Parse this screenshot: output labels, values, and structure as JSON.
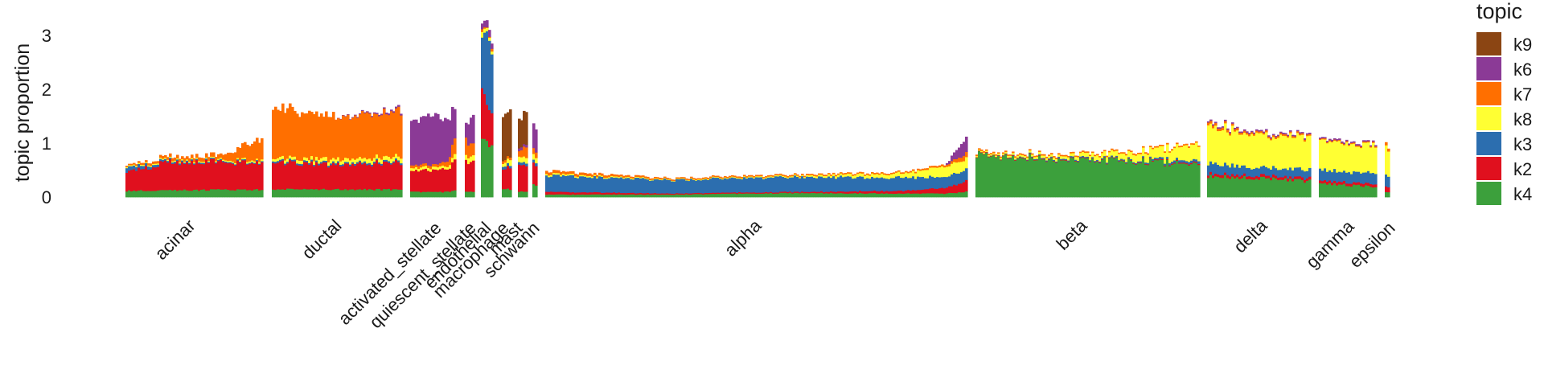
{
  "chart_data": {
    "type": "bar",
    "subtype": "stacked structure plot (per-cell stacked bars grouped by cell type)",
    "ylabel": "topic proportion",
    "xlabel": "",
    "yticks": [
      0,
      1,
      2,
      3
    ],
    "ylim": [
      0,
      3.3
    ],
    "grid": false,
    "legend": {
      "title": "topic",
      "position": "right"
    },
    "series": [
      {
        "name": "k9",
        "color": "#8B4513"
      },
      {
        "name": "k6",
        "color": "#8B3A96"
      },
      {
        "name": "k7",
        "color": "#FF6F00"
      },
      {
        "name": "k8",
        "color": "#FFFF33"
      },
      {
        "name": "k3",
        "color": "#2C6EAF"
      },
      {
        "name": "k2",
        "color": "#E0101E"
      },
      {
        "name": "k4",
        "color": "#3CA03C"
      }
    ],
    "stack_order": [
      "k4",
      "k2",
      "k3",
      "k8",
      "k7",
      "k6",
      "k9"
    ],
    "groups": [
      {
        "name": "acinar",
        "profile": [
          {
            "t": 0,
            "k4": 0.12,
            "k2": 0.35,
            "k3": 0.08,
            "k8": 0.02,
            "k7": 0.02,
            "k6": 0.0,
            "k9": 0.0
          },
          {
            "t": 0.3,
            "k4": 0.13,
            "k2": 0.52,
            "k3": 0.03,
            "k8": 0.02,
            "k7": 0.05,
            "k6": 0.0,
            "k9": 0.0
          },
          {
            "t": 0.7,
            "k4": 0.14,
            "k2": 0.52,
            "k3": 0.02,
            "k8": 0.02,
            "k7": 0.08,
            "k6": 0.0,
            "k9": 0.0
          },
          {
            "t": 1,
            "k4": 0.14,
            "k2": 0.52,
            "k3": 0.02,
            "k8": 0.03,
            "k7": 0.4,
            "k6": 0.0,
            "k9": 0.0
          }
        ]
      },
      {
        "name": "ductal",
        "profile": [
          {
            "t": 0,
            "k4": 0.15,
            "k2": 0.5,
            "k3": 0.03,
            "k8": 0.05,
            "k7": 0.92,
            "k6": 0.0,
            "k9": 0.0
          },
          {
            "t": 0.5,
            "k4": 0.15,
            "k2": 0.45,
            "k3": 0.03,
            "k8": 0.07,
            "k7": 0.8,
            "k6": 0.0,
            "k9": 0.0
          },
          {
            "t": 1,
            "k4": 0.14,
            "k2": 0.5,
            "k3": 0.03,
            "k8": 0.08,
            "k7": 0.85,
            "k6": 0.03,
            "k9": 0.0
          }
        ]
      },
      {
        "name": "activated_stellate",
        "profile": [
          {
            "t": 0,
            "k4": 0.1,
            "k2": 0.42,
            "k3": 0.0,
            "k8": 0.05,
            "k7": 0.05,
            "k6": 0.9,
            "k9": 0.0
          },
          {
            "t": 0.6,
            "k4": 0.1,
            "k2": 0.38,
            "k3": 0.0,
            "k8": 0.05,
            "k7": 0.05,
            "k6": 0.85,
            "k9": 0.0
          },
          {
            "t": 0.85,
            "k4": 0.1,
            "k2": 0.45,
            "k3": 0.0,
            "k8": 0.05,
            "k7": 0.1,
            "k6": 0.7,
            "k9": 0.0
          },
          {
            "t": 1,
            "k4": 0.12,
            "k2": 0.55,
            "k3": 0.0,
            "k8": 0.1,
            "k7": 0.3,
            "k6": 0.6,
            "k9": 0.0
          }
        ]
      },
      {
        "name": "quiescent_stellate",
        "profile": [
          {
            "t": 0,
            "k4": 0.1,
            "k2": 0.55,
            "k3": 0.0,
            "k8": 0.1,
            "k7": 0.3,
            "k6": 0.3,
            "k9": 0.0
          },
          {
            "t": 1,
            "k4": 0.1,
            "k2": 0.6,
            "k3": 0.0,
            "k8": 0.1,
            "k7": 0.2,
            "k6": 0.5,
            "k9": 0.0
          }
        ]
      },
      {
        "name": "endothelial",
        "profile": [
          {
            "t": 0,
            "k4": 1.0,
            "k2": 0.9,
            "k3": 1.0,
            "k8": 0.1,
            "k7": 0.05,
            "k6": 0.1,
            "k9": 0.0
          },
          {
            "t": 0.6,
            "k4": 1.05,
            "k2": 0.7,
            "k3": 1.35,
            "k8": 0.05,
            "k7": 0.0,
            "k6": 0.15,
            "k9": 0.0
          },
          {
            "t": 1,
            "k4": 1.0,
            "k2": 0.6,
            "k3": 1.2,
            "k8": 0.05,
            "k7": 0.05,
            "k6": 0.1,
            "k9": 0.0
          }
        ]
      },
      {
        "name": "macrophage",
        "profile": [
          {
            "t": 0,
            "k4": 0.15,
            "k2": 0.4,
            "k3": 0.05,
            "k8": 0.05,
            "k7": 0.05,
            "k6": 0.0,
            "k9": 0.9
          },
          {
            "t": 1,
            "k4": 0.15,
            "k2": 0.4,
            "k3": 0.05,
            "k8": 0.1,
            "k7": 0.05,
            "k6": 0.0,
            "k9": 0.85
          }
        ]
      },
      {
        "name": "mast",
        "profile": [
          {
            "t": 0,
            "k4": 0.1,
            "k2": 0.5,
            "k3": 0.05,
            "k8": 0.1,
            "k7": 0.1,
            "k6": 0.05,
            "k9": 0.5
          },
          {
            "t": 1,
            "k4": 0.1,
            "k2": 0.5,
            "k3": 0.05,
            "k8": 0.1,
            "k7": 0.2,
            "k6": 0.05,
            "k9": 0.6
          }
        ]
      },
      {
        "name": "schwann",
        "profile": [
          {
            "t": 0,
            "k4": 0.25,
            "k2": 0.4,
            "k3": 0.05,
            "k8": 0.1,
            "k7": 0.1,
            "k6": 0.45,
            "k9": 0.0
          },
          {
            "t": 1,
            "k4": 0.2,
            "k2": 0.4,
            "k3": 0.05,
            "k8": 0.1,
            "k7": 0.1,
            "k6": 0.45,
            "k9": 0.0
          }
        ]
      },
      {
        "name": "alpha",
        "profile": [
          {
            "t": 0,
            "k4": 0.05,
            "k2": 0.05,
            "k3": 0.3,
            "k8": 0.03,
            "k7": 0.05,
            "k6": 0.0,
            "k9": 0.0
          },
          {
            "t": 0.3,
            "k4": 0.05,
            "k2": 0.02,
            "k3": 0.25,
            "k8": 0.01,
            "k7": 0.02,
            "k6": 0.0,
            "k9": 0.0
          },
          {
            "t": 0.6,
            "k4": 0.08,
            "k2": 0.02,
            "k3": 0.28,
            "k8": 0.02,
            "k7": 0.02,
            "k6": 0.0,
            "k9": 0.0
          },
          {
            "t": 0.85,
            "k4": 0.07,
            "k2": 0.05,
            "k3": 0.25,
            "k8": 0.08,
            "k7": 0.02,
            "k6": 0.0,
            "k9": 0.0
          },
          {
            "t": 0.95,
            "k4": 0.07,
            "k2": 0.1,
            "k3": 0.2,
            "k8": 0.2,
            "k7": 0.03,
            "k6": 0.0,
            "k9": 0.0
          },
          {
            "t": 1,
            "k4": 0.1,
            "k2": 0.2,
            "k3": 0.2,
            "k8": 0.2,
            "k7": 0.1,
            "k6": 0.3,
            "k9": 0.0
          }
        ]
      },
      {
        "name": "beta",
        "profile": [
          {
            "t": 0,
            "k4": 0.78,
            "k2": 0.01,
            "k3": 0.0,
            "k8": 0.02,
            "k7": 0.02,
            "k6": 0.0,
            "k9": 0.0
          },
          {
            "t": 0.4,
            "k4": 0.7,
            "k2": 0.01,
            "k3": 0.02,
            "k8": 0.05,
            "k7": 0.02,
            "k6": 0.0,
            "k9": 0.0
          },
          {
            "t": 0.7,
            "k4": 0.67,
            "k2": 0.01,
            "k3": 0.02,
            "k8": 0.12,
            "k7": 0.02,
            "k6": 0.0,
            "k9": 0.0
          },
          {
            "t": 1,
            "k4": 0.62,
            "k2": 0.02,
            "k3": 0.05,
            "k8": 0.3,
            "k7": 0.02,
            "k6": 0.0,
            "k9": 0.0
          }
        ]
      },
      {
        "name": "delta",
        "profile": [
          {
            "t": 0,
            "k4": 0.4,
            "k2": 0.05,
            "k3": 0.2,
            "k8": 0.7,
            "k7": 0.05,
            "k6": 0.02,
            "k9": 0.0
          },
          {
            "t": 0.5,
            "k4": 0.35,
            "k2": 0.05,
            "k3": 0.15,
            "k8": 0.6,
            "k7": 0.03,
            "k6": 0.02,
            "k9": 0.0
          },
          {
            "t": 1,
            "k4": 0.3,
            "k2": 0.05,
            "k3": 0.15,
            "k8": 0.6,
            "k7": 0.03,
            "k6": 0.02,
            "k9": 0.0
          }
        ]
      },
      {
        "name": "gamma",
        "profile": [
          {
            "t": 0,
            "k4": 0.25,
            "k2": 0.05,
            "k3": 0.2,
            "k8": 0.55,
            "k7": 0.02,
            "k6": 0.02,
            "k9": 0.0
          },
          {
            "t": 1,
            "k4": 0.2,
            "k2": 0.05,
            "k3": 0.2,
            "k8": 0.5,
            "k7": 0.02,
            "k6": 0.02,
            "k9": 0.0
          }
        ]
      },
      {
        "name": "epsilon",
        "profile": [
          {
            "t": 0,
            "k4": 0.1,
            "k2": 0.1,
            "k3": 0.2,
            "k8": 0.5,
            "k7": 0.05,
            "k6": 0.0,
            "k9": 0.0
          },
          {
            "t": 1,
            "k4": 0.1,
            "k2": 0.1,
            "k3": 0.2,
            "k8": 0.45,
            "k7": 0.05,
            "k6": 0.0,
            "k9": 0.0
          }
        ]
      }
    ]
  }
}
